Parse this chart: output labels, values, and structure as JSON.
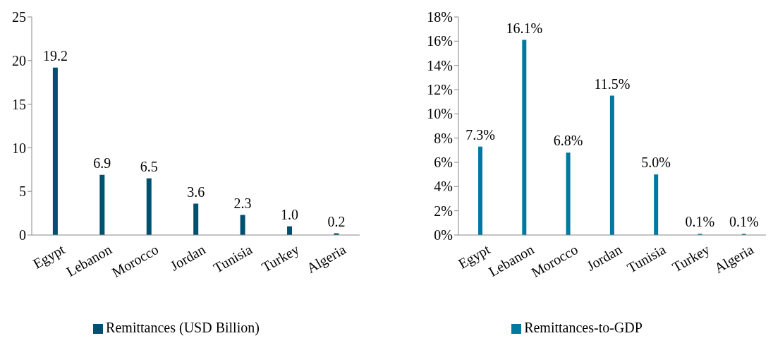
{
  "chart_data": [
    {
      "type": "bar",
      "categories": [
        "Egypt",
        "Lebanon",
        "Morocco",
        "Jordan",
        "Tunisia",
        "Turkey",
        "Algeria"
      ],
      "series": [
        {
          "name": "Remittances (USD Billion)",
          "color": "#00506e",
          "values": [
            19.2,
            6.9,
            6.5,
            3.6,
            2.3,
            1.0,
            0.2
          ],
          "value_labels": [
            "19.2",
            "6.9",
            "6.5",
            "3.6",
            "2.3",
            "1.0",
            "0.2"
          ]
        }
      ],
      "ylim": [
        0,
        25
      ],
      "yticks": [
        0,
        5,
        10,
        15,
        20,
        25
      ],
      "grid": false,
      "legend": "bottom"
    },
    {
      "type": "bar",
      "categories": [
        "Egypt",
        "Lebanon",
        "Morocco",
        "Jordan",
        "Tunisia",
        "Turkey",
        "Algeria"
      ],
      "series": [
        {
          "name": "Remittances-to-GDP",
          "color": "#0079a0",
          "values": [
            7.3,
            16.1,
            6.8,
            11.5,
            5.0,
            0.1,
            0.1
          ],
          "value_labels": [
            "7.3%",
            "16.1%",
            "6.8%",
            "11.5%",
            "5.0%",
            "0.1%",
            "0.1%"
          ]
        }
      ],
      "ylim": [
        0,
        18
      ],
      "yticks": [
        {
          "value": 0,
          "label": "0%"
        },
        {
          "value": 2,
          "label": "2%"
        },
        {
          "value": 4,
          "label": "4%"
        },
        {
          "value": 6,
          "label": "6%"
        },
        {
          "value": 8,
          "label": "8%"
        },
        {
          "value": 10,
          "label": "10%"
        },
        {
          "value": 12,
          "label": "12%"
        },
        {
          "value": 14,
          "label": "14%"
        },
        {
          "value": 16,
          "label": "16%"
        },
        {
          "value": 18,
          "label": "18%"
        }
      ],
      "grid": false,
      "legend": "bottom"
    }
  ]
}
